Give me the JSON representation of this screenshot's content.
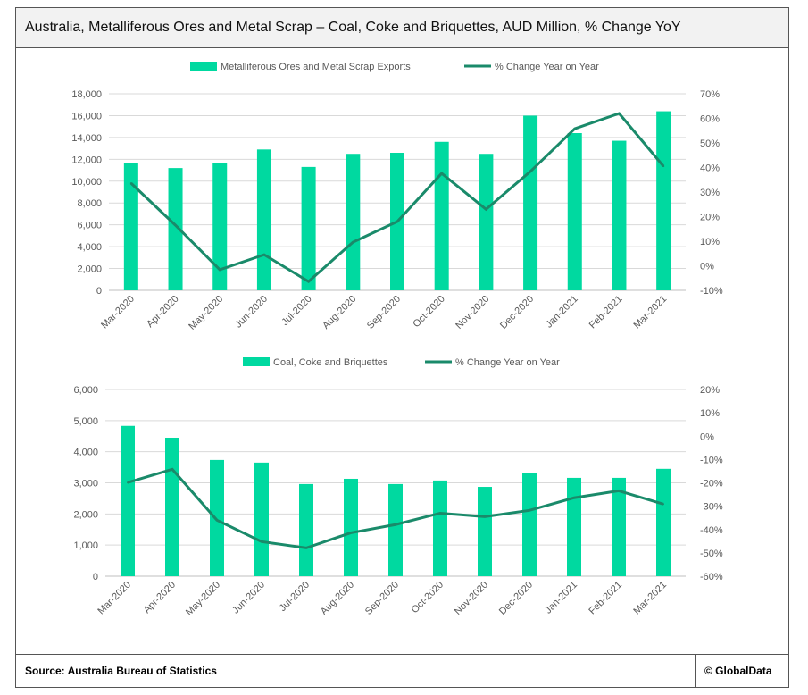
{
  "title": "Australia, Metalliferous Ores and Metal Scrap – Coal, Coke and Briquettes, AUD Million, % Change YoY",
  "footer": {
    "source": "Source: Australia Bureau of Statistics",
    "brand": "© GlobalData"
  },
  "colors": {
    "bar": "#00D9A0",
    "line": "#1A8A6A"
  },
  "chart_data": [
    {
      "type": "bar+line",
      "categories": [
        "Mar-2020",
        "Apr-2020",
        "May-2020",
        "Jun-2020",
        "Jul-2020",
        "Aug-2020",
        "Sep-2020",
        "Oct-2020",
        "Nov-2020",
        "Dec-2020",
        "Jan-2021",
        "Feb-2021",
        "Mar-2021"
      ],
      "series": [
        {
          "name": "Metalliferous Ores and Metal Scrap Exports",
          "type": "bar",
          "axis": "left",
          "values": [
            11700,
            11200,
            11700,
            12900,
            11300,
            12500,
            12600,
            13600,
            12500,
            16000,
            14400,
            13700,
            16400
          ]
        },
        {
          "name": "% Change Year on Year",
          "type": "line",
          "axis": "right",
          "values": [
            33.6,
            16.5,
            -1.6,
            4.5,
            -6.4,
            9.6,
            18,
            37.6,
            23,
            38.4,
            55.8,
            62,
            40.5
          ]
        }
      ],
      "left_axis": {
        "min": 0,
        "max": 18000,
        "ticks": [
          "0",
          "2,000",
          "4,000",
          "6,000",
          "8,000",
          "10,000",
          "12,000",
          "14,000",
          "16,000",
          "18,000"
        ]
      },
      "right_axis": {
        "min": -10,
        "max": 70,
        "ticks": [
          "-10%",
          "0%",
          "10%",
          "20%",
          "30%",
          "40%",
          "50%",
          "60%",
          "70%"
        ]
      },
      "grid": true,
      "legend": "top"
    },
    {
      "type": "bar+line",
      "categories": [
        "Mar-2020",
        "Apr-2020",
        "May-2020",
        "Jun-2020",
        "Jul-2020",
        "Aug-2020",
        "Sep-2020",
        "Oct-2020",
        "Nov-2020",
        "Dec-2020",
        "Jan-2021",
        "Feb-2021",
        "Mar-2021"
      ],
      "series": [
        {
          "name": "Coal, Coke and Briquettes",
          "type": "bar",
          "axis": "left",
          "values": [
            4830,
            4450,
            3735,
            3650,
            2960,
            3130,
            2960,
            3075,
            2870,
            3330,
            3160,
            3160,
            3450
          ]
        },
        {
          "name": "% Change Year on Year",
          "type": "line",
          "axis": "right",
          "values": [
            -19.9,
            -14.2,
            -36,
            -45.2,
            -47.9,
            -41.4,
            -37.9,
            -33,
            -34.5,
            -31.8,
            -26.4,
            -23.4,
            -29.1
          ]
        }
      ],
      "left_axis": {
        "min": 0,
        "max": 6000,
        "ticks": [
          "0",
          "1,000",
          "2,000",
          "3,000",
          "4,000",
          "5,000",
          "6,000"
        ]
      },
      "right_axis": {
        "min": -60,
        "max": 20,
        "ticks": [
          "-60%",
          "-50%",
          "-40%",
          "-30%",
          "-20%",
          "-10%",
          "0%",
          "10%",
          "20%"
        ]
      },
      "grid": true,
      "legend": "top"
    }
  ]
}
